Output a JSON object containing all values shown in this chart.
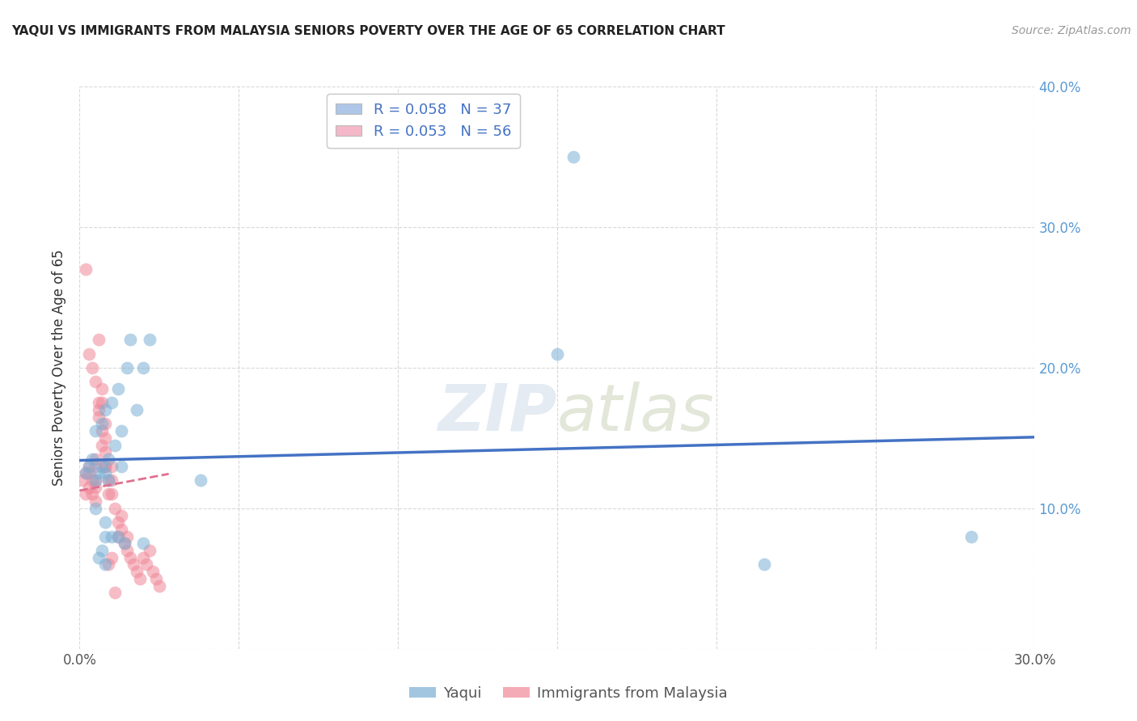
{
  "title": "YAQUI VS IMMIGRANTS FROM MALAYSIA SENIORS POVERTY OVER THE AGE OF 65 CORRELATION CHART",
  "source": "Source: ZipAtlas.com",
  "ylabel": "Seniors Poverty Over the Age of 65",
  "background_color": "#ffffff",
  "grid_color": "#d0d0d0",
  "watermark_zip": "ZIP",
  "watermark_atlas": "atlas",
  "legend_label1": "R = 0.058   N = 37",
  "legend_label2": "R = 0.053   N = 56",
  "legend_color1": "#aec6e8",
  "legend_color2": "#f4b8c8",
  "scatter_color1": "#7bafd4",
  "scatter_color2": "#f08898",
  "line_color1": "#4472c4",
  "line_color2": "#e07090",
  "xlim": [
    0.0,
    0.3
  ],
  "ylim": [
    0.0,
    0.4
  ],
  "right_ytick_labels": [
    "",
    "10.0%",
    "20.0%",
    "30.0%",
    "40.0%"
  ],
  "bottom_xtick_labels": [
    "0.0%",
    "",
    "",
    "",
    "",
    "",
    "30.0%"
  ],
  "legend_entry1": "Yaqui",
  "legend_entry2": "Immigrants from Malaysia",
  "yaqui_x": [
    0.002,
    0.003,
    0.004,
    0.005,
    0.005,
    0.006,
    0.007,
    0.007,
    0.008,
    0.008,
    0.009,
    0.01,
    0.011,
    0.012,
    0.013,
    0.013,
    0.015,
    0.016,
    0.018,
    0.02,
    0.022,
    0.005,
    0.008,
    0.01,
    0.007,
    0.008,
    0.012,
    0.009,
    0.006,
    0.008,
    0.014,
    0.02,
    0.038,
    0.155,
    0.28,
    0.15,
    0.215
  ],
  "yaqui_y": [
    0.125,
    0.13,
    0.135,
    0.12,
    0.155,
    0.125,
    0.13,
    0.16,
    0.125,
    0.17,
    0.135,
    0.175,
    0.145,
    0.185,
    0.13,
    0.155,
    0.2,
    0.22,
    0.17,
    0.2,
    0.22,
    0.1,
    0.09,
    0.08,
    0.07,
    0.06,
    0.08,
    0.12,
    0.065,
    0.08,
    0.075,
    0.075,
    0.12,
    0.35,
    0.08,
    0.21,
    0.06
  ],
  "malaysia_x": [
    0.001,
    0.002,
    0.002,
    0.003,
    0.003,
    0.003,
    0.004,
    0.004,
    0.005,
    0.005,
    0.005,
    0.005,
    0.005,
    0.006,
    0.006,
    0.006,
    0.007,
    0.007,
    0.007,
    0.008,
    0.008,
    0.008,
    0.008,
    0.009,
    0.009,
    0.01,
    0.01,
    0.01,
    0.011,
    0.012,
    0.012,
    0.013,
    0.013,
    0.014,
    0.015,
    0.015,
    0.016,
    0.017,
    0.018,
    0.019,
    0.02,
    0.021,
    0.022,
    0.023,
    0.024,
    0.025,
    0.002,
    0.003,
    0.004,
    0.005,
    0.006,
    0.007,
    0.008,
    0.009,
    0.01,
    0.011
  ],
  "malaysia_y": [
    0.12,
    0.125,
    0.11,
    0.115,
    0.125,
    0.13,
    0.12,
    0.11,
    0.12,
    0.13,
    0.135,
    0.115,
    0.105,
    0.17,
    0.175,
    0.165,
    0.155,
    0.145,
    0.175,
    0.16,
    0.15,
    0.14,
    0.13,
    0.12,
    0.11,
    0.13,
    0.12,
    0.11,
    0.1,
    0.09,
    0.08,
    0.095,
    0.085,
    0.075,
    0.08,
    0.07,
    0.065,
    0.06,
    0.055,
    0.05,
    0.065,
    0.06,
    0.07,
    0.055,
    0.05,
    0.045,
    0.27,
    0.21,
    0.2,
    0.19,
    0.22,
    0.185,
    0.13,
    0.06,
    0.065,
    0.04
  ]
}
